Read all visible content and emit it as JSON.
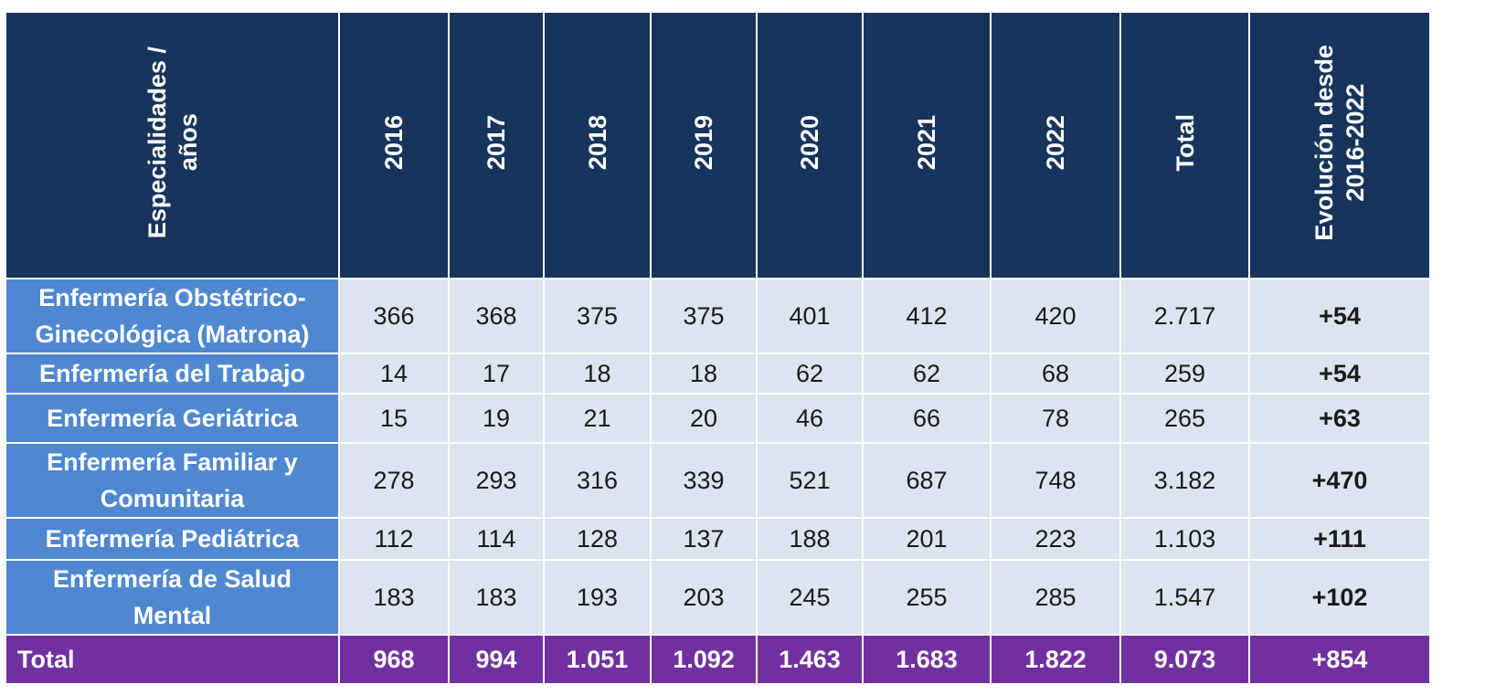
{
  "chart_data": {
    "type": "table",
    "header": {
      "row_label": "Especialidades / años",
      "row_label_lines": [
        "Especialidades /",
        "años"
      ],
      "years": [
        "2016",
        "2017",
        "2018",
        "2019",
        "2020",
        "2021",
        "2022"
      ],
      "total": "Total",
      "evolution_lines": [
        "Evolución desde",
        "2016-2022"
      ]
    },
    "rows": [
      {
        "name_lines": [
          "Enfermería Obstétrico-",
          "Ginecológica (Matrona)"
        ],
        "values": [
          "366",
          "368",
          "375",
          "375",
          "401",
          "412",
          "420"
        ],
        "total": "2.717",
        "evolution": "+54"
      },
      {
        "name_lines": [
          "Enfermería del Trabajo"
        ],
        "values": [
          "14",
          "17",
          "18",
          "18",
          "62",
          "62",
          "68"
        ],
        "total": "259",
        "evolution": "+54"
      },
      {
        "name_lines": [
          "Enfermería Geriátrica"
        ],
        "values": [
          "15",
          "19",
          "21",
          "20",
          "46",
          "66",
          "78"
        ],
        "total": "265",
        "evolution": "+63"
      },
      {
        "name_lines": [
          "Enfermería Familiar y",
          "Comunitaria"
        ],
        "values": [
          "278",
          "293",
          "316",
          "339",
          "521",
          "687",
          "748"
        ],
        "total": "3.182",
        "evolution": "+470"
      },
      {
        "name_lines": [
          "Enfermería Pediátrica"
        ],
        "values": [
          "112",
          "114",
          "128",
          "137",
          "188",
          "201",
          "223"
        ],
        "total": "1.103",
        "evolution": "+111"
      },
      {
        "name_lines": [
          "Enfermería de Salud",
          "Mental"
        ],
        "values": [
          "183",
          "183",
          "193",
          "203",
          "245",
          "255",
          "285"
        ],
        "total": "1.547",
        "evolution": "+102"
      }
    ],
    "totals": {
      "label": "Total",
      "values": [
        "968",
        "994",
        "1.051",
        "1.092",
        "1.463",
        "1.683",
        "1.822"
      ],
      "total": "9.073",
      "evolution": "+854"
    }
  },
  "colors": {
    "header_bg": "#17345c",
    "specialty_bg": "#4f88d0",
    "cell_bg": "#dbe4ef",
    "total_row_bg": "#7130a0"
  }
}
